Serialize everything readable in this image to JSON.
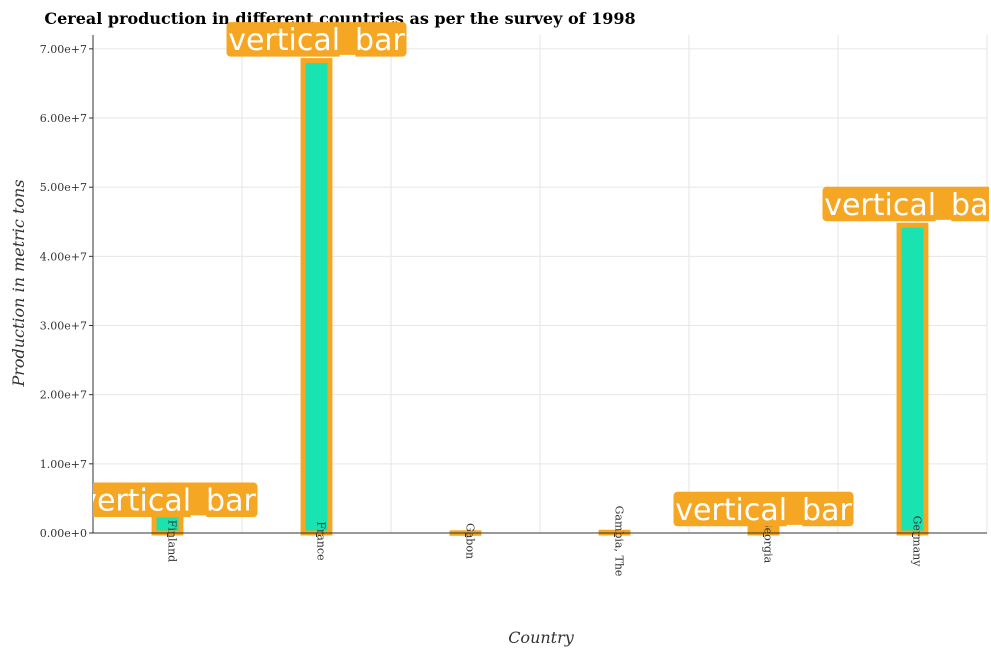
{
  "chart_data": {
    "type": "bar",
    "title": "Cereal production in different countries as per the survey of 1998",
    "xlabel": "Country",
    "ylabel": "Production in metric tons",
    "categories": [
      "Finland",
      "France",
      "Gabon",
      "Gambia, The",
      "Georgia",
      "Germany"
    ],
    "values": [
      2620000,
      68300000,
      30000,
      110000,
      650000,
      44500000
    ],
    "ylim": [
      0,
      72000000
    ],
    "yticks": [
      0,
      10000000,
      20000000,
      30000000,
      40000000,
      50000000,
      60000000,
      70000000
    ],
    "ytick_labels": [
      "0.00e+0",
      "1.00e+7",
      "2.00e+7",
      "3.00e+7",
      "4.00e+7",
      "5.00e+7",
      "6.00e+7",
      "7.00e+7"
    ],
    "grid": true,
    "annotation_text": "vertical_bar",
    "colors": {
      "bar_fill": "#19e3b1",
      "bar_edge": "#f5a623",
      "annotation_bg": "#f5a623",
      "annotation_text": "#ffffff",
      "grid": "#e6e6e6"
    }
  }
}
